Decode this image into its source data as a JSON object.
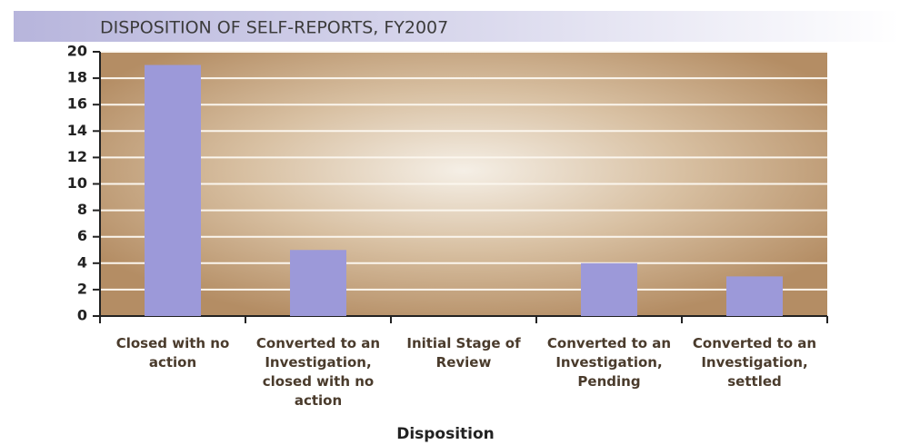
{
  "chart_data": {
    "type": "bar",
    "title": "DISPOSITION OF SELF-REPORTS, FY2007",
    "categories": [
      "Closed with no action",
      "Converted to an Investigation, closed with no action",
      "Initial Stage of Review",
      "Converted to an Investigation, Pending",
      "Converted to an Investigation, settled"
    ],
    "values": [
      19,
      5,
      0,
      4,
      3
    ],
    "color": "#9c99d9",
    "x_label": "Disposition",
    "ylim": [
      0,
      20
    ],
    "yticks": [
      0,
      2,
      4,
      6,
      8,
      10,
      12,
      14,
      16,
      18,
      20
    ],
    "grid": true
  }
}
